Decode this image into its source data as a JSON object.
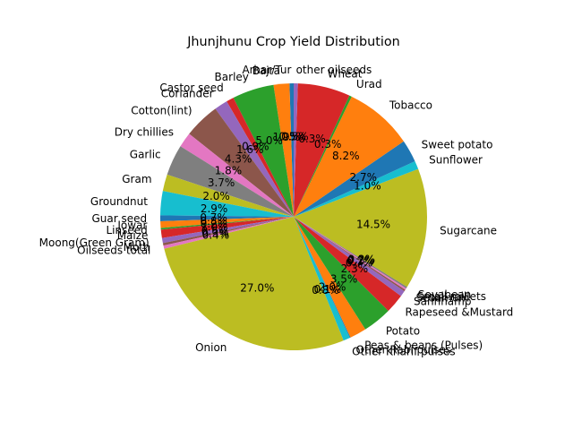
{
  "chart_data": {
    "type": "pie",
    "title": "Jhunjhunu Crop Yield Distribution",
    "start_angle_deg": 90,
    "direction": "counterclockwise",
    "slices": [
      {
        "label": "Arhar/Tur",
        "value": 0.5,
        "pct_label": "0.5%",
        "color": "#1f77b4"
      },
      {
        "label": "Bajra",
        "value": 1.9,
        "pct_label": "1.9%",
        "color": "#ff7f0e"
      },
      {
        "label": "Barley",
        "value": 5.0,
        "pct_label": "5.0%",
        "color": "#2ca02c"
      },
      {
        "label": "Castor seed",
        "value": 0.9,
        "pct_label": "0.9%",
        "color": "#d62728"
      },
      {
        "label": "Coriander",
        "value": 1.6,
        "pct_label": "1.6%",
        "color": "#9467bd"
      },
      {
        "label": "Cotton(lint)",
        "value": 4.3,
        "pct_label": "4.3%",
        "color": "#8c564b"
      },
      {
        "label": "Dry chillies",
        "value": 1.8,
        "pct_label": "1.8%",
        "color": "#e377c2"
      },
      {
        "label": "Garlic",
        "value": 3.7,
        "pct_label": "3.7%",
        "color": "#7f7f7f"
      },
      {
        "label": "Gram",
        "value": 2.0,
        "pct_label": "2.0%",
        "color": "#bcbd22"
      },
      {
        "label": "Groundnut",
        "value": 2.9,
        "pct_label": "2.9%",
        "color": "#17becf"
      },
      {
        "label": "Guar seed",
        "value": 0.7,
        "pct_label": "0.7%",
        "color": "#1f77b4"
      },
      {
        "label": "Jowar",
        "value": 0.8,
        "pct_label": "0.8%",
        "color": "#ff7f0e"
      },
      {
        "label": "Linseed",
        "value": 0.2,
        "pct_label": "0.2%",
        "color": "#2ca02c"
      },
      {
        "label": "Maize",
        "value": 1.0,
        "pct_label": "1.0%",
        "color": "#d62728"
      },
      {
        "label": "Moong(Green Gram)",
        "value": 0.6,
        "pct_label": "0.6%",
        "color": "#9467bd"
      },
      {
        "label": "Moth",
        "value": 0.3,
        "pct_label": "0.3%",
        "color": "#8c564b"
      },
      {
        "label": "Oilseeds total",
        "value": 0.4,
        "pct_label": "0.4%",
        "color": "#e377c2"
      },
      {
        "label": "Onion",
        "value": 27.0,
        "pct_label": "27.0%",
        "color": "#bcbd22"
      },
      {
        "label": "Other Kharif pulses",
        "value": 0.8,
        "pct_label": "0.8%",
        "color": "#17becf"
      },
      {
        "label": "Other Rabi pulses",
        "value": 0.1,
        "pct_label": "0.1%",
        "color": "#1f77b4"
      },
      {
        "label": "Peas & beans (Pulses)",
        "value": 2.0,
        "pct_label": "2.0%",
        "color": "#ff7f0e"
      },
      {
        "label": "Potato",
        "value": 3.5,
        "pct_label": "3.5%",
        "color": "#2ca02c"
      },
      {
        "label": "Rapeseed &Mustard",
        "value": 2.3,
        "pct_label": "2.3%",
        "color": "#d62728"
      },
      {
        "label": "Sannhamp",
        "value": 0.7,
        "pct_label": "0.7%",
        "color": "#9467bd"
      },
      {
        "label": "Sesamum",
        "value": 0.2,
        "pct_label": "0.2%",
        "color": "#8c564b"
      },
      {
        "label": "Small millets",
        "value": 0.2,
        "pct_label": "0.2%",
        "color": "#e377c2"
      },
      {
        "label": "Soyabean",
        "value": 0.2,
        "pct_label": "0.2%",
        "color": "#7f7f7f"
      },
      {
        "label": "Sugarcane",
        "value": 14.5,
        "pct_label": "14.5%",
        "color": "#bcbd22"
      },
      {
        "label": "Sunflower",
        "value": 1.0,
        "pct_label": "1.0%",
        "color": "#17becf"
      },
      {
        "label": "Sweet potato",
        "value": 2.7,
        "pct_label": "2.7%",
        "color": "#1f77b4"
      },
      {
        "label": "Tobacco",
        "value": 8.2,
        "pct_label": "8.2%",
        "color": "#ff7f0e"
      },
      {
        "label": "Urad",
        "value": 0.3,
        "pct_label": "0.3%",
        "color": "#2ca02c"
      },
      {
        "label": "Wheat",
        "value": 6.3,
        "pct_label": "6.3%",
        "color": "#d62728"
      },
      {
        "label": "other oilseeds",
        "value": 0.5,
        "pct_label": "0.5%",
        "color": "#9467bd"
      }
    ]
  }
}
